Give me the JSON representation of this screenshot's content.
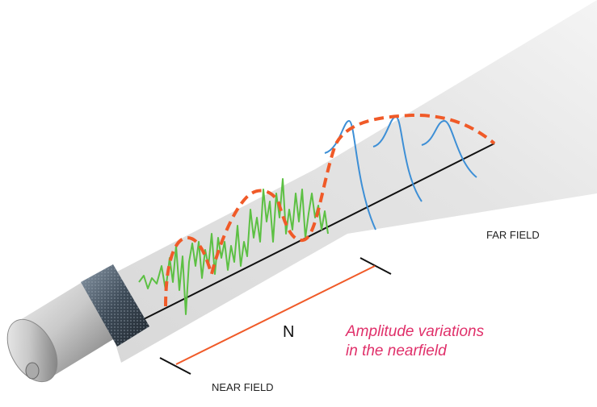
{
  "labels": {
    "far_field": "FAR FIELD",
    "n": "N",
    "amplitude_line1": "Amplitude variations",
    "amplitude_line2": "in the nearfield",
    "near_field": "NEAR FIELD"
  }
}
